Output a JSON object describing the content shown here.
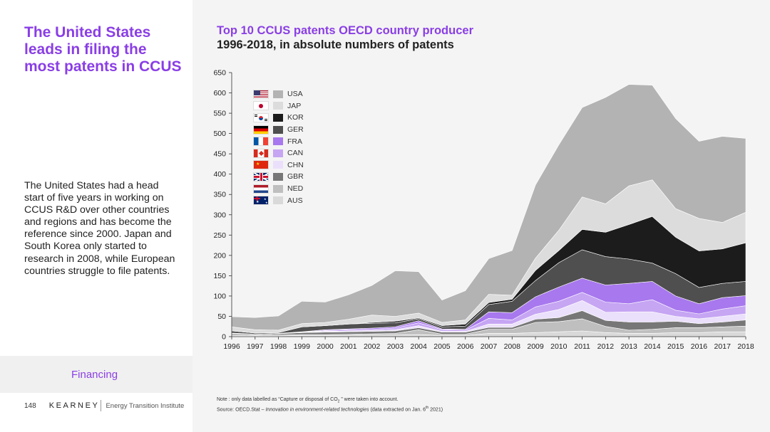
{
  "left": {
    "headline": "The United States leads in filing the most patents in CCUS",
    "body": "The United States had a head start of five years in working on CCUS R&D over other countries and regions and has become the reference since 2000. Japan and South Korea only started to research in 2008, while European countries struggle to file patents.",
    "section": "Financing"
  },
  "footer": {
    "page_number": "148",
    "brand": "KEARNEY",
    "institute": "Energy Transition Institute"
  },
  "note": {
    "line1_prefix": "Note : only data labelled as “Capture or disposal of CO",
    "line1_sub": "2",
    "line1_suffix": " ” were taken into account.",
    "line2_prefix": "Source: OECD.Stat – ",
    "line2_italic": "Innovation in environment-related technologies",
    "line2_suffix": " (data extracted on Jan. 6",
    "line2_sup": "th",
    "line2_end": " 2021)"
  },
  "chart_data": {
    "type": "area",
    "stacked": true,
    "title": "Top 10 CCUS patents OECD country producer",
    "subtitle": "1996-2018, in absolute numbers of patents",
    "xlabel": "",
    "ylabel": "",
    "ylim": [
      0,
      650
    ],
    "yticks": [
      0,
      50,
      100,
      150,
      200,
      250,
      300,
      350,
      400,
      450,
      500,
      550,
      600,
      650
    ],
    "x": [
      "1996",
      "1997",
      "1998",
      "1999",
      "2000",
      "2001",
      "2002",
      "2003",
      "2004",
      "2005",
      "2006",
      "2007",
      "2008",
      "2009",
      "2010",
      "2011",
      "2012",
      "2013",
      "2014",
      "2015",
      "2016",
      "2017",
      "2018"
    ],
    "grid": false,
    "legend_position": "top-left",
    "series": [
      {
        "name": "AUS",
        "color": "#d9d9d9",
        "flag": "aus",
        "values": [
          2,
          2,
          2,
          3,
          3,
          3,
          4,
          4,
          5,
          3,
          3,
          8,
          8,
          10,
          12,
          14,
          10,
          8,
          8,
          10,
          10,
          12,
          12
        ]
      },
      {
        "name": "NED",
        "color": "#bfbfbf",
        "flag": "ned",
        "values": [
          2,
          1,
          2,
          2,
          2,
          3,
          3,
          4,
          12,
          3,
          3,
          10,
          10,
          25,
          25,
          30,
          15,
          8,
          10,
          12,
          12,
          12,
          14
        ]
      },
      {
        "name": "GBR",
        "color": "#777777",
        "flag": "gbr",
        "values": [
          3,
          2,
          3,
          5,
          6,
          6,
          6,
          6,
          5,
          5,
          5,
          5,
          5,
          8,
          10,
          20,
          15,
          20,
          18,
          16,
          10,
          12,
          15
        ]
      },
      {
        "name": "CHN",
        "color": "#ebe0fb",
        "flag": "chn",
        "values": [
          1,
          1,
          1,
          1,
          2,
          2,
          2,
          3,
          5,
          2,
          2,
          8,
          8,
          12,
          20,
          25,
          20,
          25,
          25,
          12,
          12,
          14,
          15
        ]
      },
      {
        "name": "CAN",
        "color": "#c6a5f3",
        "flag": "can",
        "values": [
          0,
          0,
          0,
          0,
          2,
          3,
          3,
          4,
          7,
          4,
          3,
          14,
          10,
          18,
          20,
          20,
          25,
          20,
          30,
          15,
          12,
          18,
          20
        ]
      },
      {
        "name": "FRA",
        "color": "#a878ee",
        "flag": "fra",
        "values": [
          1,
          0,
          0,
          1,
          2,
          2,
          3,
          3,
          5,
          2,
          2,
          16,
          18,
          25,
          35,
          35,
          42,
          50,
          45,
          35,
          25,
          28,
          25
        ]
      },
      {
        "name": "GER",
        "color": "#4f4f4f",
        "flag": "ger",
        "values": [
          5,
          3,
          2,
          12,
          10,
          12,
          12,
          10,
          5,
          5,
          8,
          18,
          28,
          40,
          60,
          70,
          70,
          60,
          45,
          55,
          40,
          35,
          35
        ]
      },
      {
        "name": "KOR",
        "color": "#1c1c1c",
        "flag": "kor",
        "values": [
          0,
          0,
          0,
          0,
          0,
          0,
          2,
          4,
          2,
          3,
          5,
          5,
          5,
          25,
          30,
          50,
          60,
          85,
          115,
          90,
          90,
          85,
          95
        ]
      },
      {
        "name": "JAP",
        "color": "#dcdcdc",
        "flag": "jap",
        "values": [
          10,
          8,
          6,
          8,
          8,
          12,
          18,
          12,
          12,
          8,
          10,
          20,
          10,
          30,
          50,
          80,
          70,
          95,
          90,
          70,
          80,
          65,
          75
        ]
      },
      {
        "name": "USA",
        "color": "#b3b3b3",
        "flag": "usa",
        "values": [
          25,
          30,
          35,
          55,
          50,
          60,
          73,
          112,
          102,
          55,
          72,
          88,
          110,
          180,
          210,
          220,
          262,
          250,
          233,
          222,
          190,
          212,
          182
        ]
      }
    ]
  }
}
